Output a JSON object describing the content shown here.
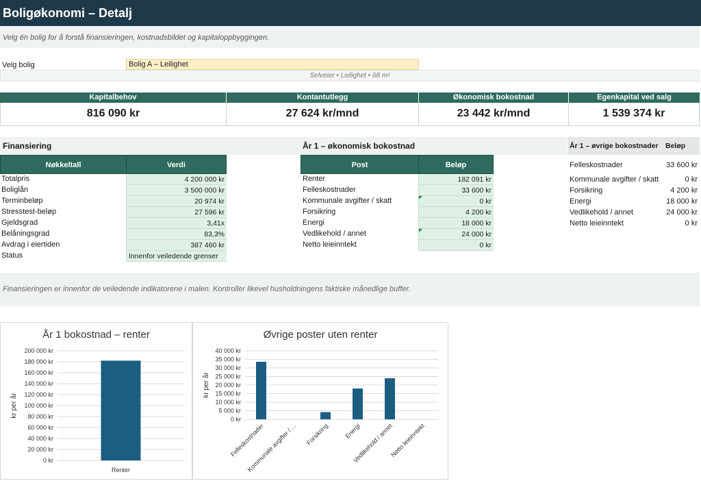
{
  "header": {
    "title": "Boligøkonomi – Detalj",
    "subtitle": "Velg én bolig for å forstå finansieringen, kostnadsbildet og kapitaloppbyggingen."
  },
  "selector": {
    "label": "Velg bolig",
    "value": "Bolig A – Leilighet",
    "info": "Selveier • Leilighet • 68 m²"
  },
  "kpis": [
    {
      "label": "Kapitalbehov",
      "value": "816 090 kr"
    },
    {
      "label": "Kontantutlegg",
      "value": "27 624 kr/mnd"
    },
    {
      "label": "Økonomisk bokostnad",
      "value": "23 442 kr/mnd"
    },
    {
      "label": "Egenkapital ved salg",
      "value": "1 539 374 kr"
    }
  ],
  "financing": {
    "section_title": "Finansiering",
    "col_key": "Nøkkeltall",
    "col_value": "Verdi",
    "rows": [
      {
        "label": "Totalpris",
        "value": "4 200 000 kr"
      },
      {
        "label": "Boliglån",
        "value": "3 500 000 kr"
      },
      {
        "label": "Terminbeløp",
        "value": "20 974 kr"
      },
      {
        "label": "Stresstest-beløp",
        "value": "27 596 kr"
      },
      {
        "label": "Gjeldsgrad",
        "value": "3,41x"
      },
      {
        "label": "Belåningsgrad",
        "value": "83,3%"
      },
      {
        "label": "Avdrag i eiertiden",
        "value": "387 460 kr"
      },
      {
        "label": "Status",
        "value": "Innenfor veiledende grenser"
      }
    ]
  },
  "cost": {
    "section_title": "År 1 – økonomisk bokostnad",
    "col_post": "Post",
    "col_amount": "Beløp",
    "rows": [
      {
        "label": "Renter",
        "value": "182 091 kr"
      },
      {
        "label": "Felleskostnader",
        "value": "33 600 kr"
      },
      {
        "label": "Kommunale avgifter / skatt",
        "value": "0 kr"
      },
      {
        "label": "Forsikring",
        "value": "4 200 kr"
      },
      {
        "label": "Energi",
        "value": "18 000 kr"
      },
      {
        "label": "Vedlikehold / annet",
        "value": "24 000 kr"
      },
      {
        "label": "Netto leieinntekt",
        "value": "0 kr"
      }
    ]
  },
  "other": {
    "section_title": "År 1 – øvrige bokostnader",
    "col_amount": "Beløp",
    "rows": [
      {
        "label": "Felleskostnader",
        "value": "33 600 kr"
      },
      {
        "label": "Kommunale avgifter / skatt",
        "value": "0 kr"
      },
      {
        "label": "Forsikring",
        "value": "4 200 kr"
      },
      {
        "label": "Energi",
        "value": "18 000 kr"
      },
      {
        "label": "Vedlikehold / annet",
        "value": "24 000 kr"
      },
      {
        "label": "Netto leieinntekt",
        "value": "0 kr"
      }
    ]
  },
  "note": "Finansieringen er innenfor de veiledende indikatorene i malen. Kontroller likevel husholdningens faktiske månedlige buffer.",
  "colors": {
    "header": "#1e3a4a",
    "accent": "#2e6b5e",
    "bar": "#1b5e82",
    "input": "#fdf0c7"
  },
  "chart_data": [
    {
      "type": "bar",
      "title": "År 1 bokostnad – renter",
      "ylabel": "kr per år",
      "categories": [
        "Renter"
      ],
      "values": [
        182091
      ],
      "ylim": [
        0,
        200000
      ],
      "yticks": [
        "0 kr",
        "20 000 kr",
        "40 000 kr",
        "60 000 kr",
        "80 000 kr",
        "100 000 kr",
        "120 000 kr",
        "140 000 kr",
        "160 000 kr",
        "180 000 kr",
        "200 000 kr"
      ],
      "grid": true
    },
    {
      "type": "bar",
      "title": "Øvrige poster uten renter",
      "ylabel": "kr per år",
      "categories": [
        "Felleskostnader",
        "Kommunale avgifter / ...",
        "Forsikring",
        "Energi",
        "Vedlikehold / annet",
        "Netto leieinntekt"
      ],
      "values": [
        33600,
        0,
        4200,
        18000,
        24000,
        0
      ],
      "ylim": [
        0,
        40000
      ],
      "yticks": [
        "0 kr",
        "5 000 kr",
        "10 000 kr",
        "15 000 kr",
        "20 000 kr",
        "25 000 kr",
        "30 000 kr",
        "35 000 kr",
        "40 000 kr"
      ],
      "grid": true
    }
  ]
}
